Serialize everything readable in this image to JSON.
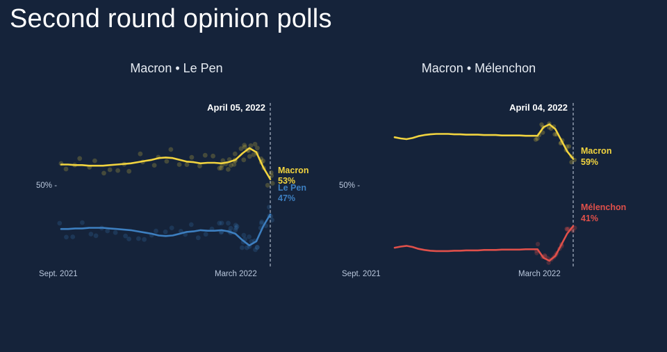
{
  "page": {
    "title": "Second round opinion polls"
  },
  "colors": {
    "background": "#15233a",
    "macron": "#f2d43f",
    "lepen": "#3d7fc0",
    "melenchon": "#e0504a",
    "tick": "#b9c7dc"
  },
  "chart_data": [
    {
      "type": "line",
      "title": "Macron • Le Pen",
      "xlabel": "",
      "ylabel": "",
      "date_marker": "April 05, 2022",
      "x_ticks": [
        "Sept. 2021",
        "March 2022"
      ],
      "y_ticks": [
        {
          "value": 50,
          "label": "50% -"
        }
      ],
      "ylim": [
        38,
        66
      ],
      "x": [
        0,
        1,
        2,
        3,
        4,
        5,
        6,
        7,
        8,
        9,
        10,
        11,
        12,
        13,
        14,
        15,
        16,
        17,
        18,
        19,
        20,
        21,
        22,
        23,
        24,
        25,
        26,
        27,
        28,
        29,
        30
      ],
      "series": [
        {
          "name": "Macron",
          "color": "#f2d43f",
          "end_label": "53%",
          "values": [
            55.5,
            55.5,
            55.4,
            55.4,
            55.3,
            55.3,
            55.3,
            55.4,
            55.5,
            55.6,
            55.7,
            55.9,
            56.1,
            56.3,
            56.6,
            56.7,
            56.6,
            56.3,
            56.0,
            55.9,
            55.7,
            55.8,
            55.8,
            55.7,
            55.9,
            56.3,
            57.4,
            58.3,
            57.6,
            55.0,
            53.0
          ]
        },
        {
          "name": "Le Pen",
          "color": "#3d7fc0",
          "end_label": "47%",
          "values": [
            44.5,
            44.5,
            44.6,
            44.6,
            44.7,
            44.7,
            44.7,
            44.6,
            44.5,
            44.4,
            44.3,
            44.1,
            43.9,
            43.7,
            43.4,
            43.3,
            43.4,
            43.7,
            44.0,
            44.1,
            44.3,
            44.2,
            44.2,
            44.3,
            44.1,
            43.7,
            42.6,
            41.7,
            42.4,
            45.0,
            47.0
          ]
        }
      ]
    },
    {
      "type": "line",
      "title": "Macron • Mélenchon",
      "xlabel": "",
      "ylabel": "",
      "date_marker": "April 04, 2022",
      "x_ticks": [
        "Sept. 2021",
        "March 2022"
      ],
      "y_ticks": [
        {
          "value": 50,
          "label": "50% -"
        }
      ],
      "ylim": [
        30,
        74
      ],
      "x": [
        0,
        1,
        2,
        3,
        4,
        5,
        6,
        7,
        8,
        9,
        10,
        11,
        12,
        13,
        14,
        15,
        16,
        17,
        18,
        19,
        20,
        21,
        22,
        23,
        24,
        25,
        26,
        27,
        28,
        29,
        30
      ],
      "series": [
        {
          "name": "Macron",
          "color": "#f2d43f",
          "end_label": "59%",
          "values": [
            64.8,
            64.5,
            64.3,
            64.6,
            65.1,
            65.4,
            65.6,
            65.7,
            65.7,
            65.7,
            65.6,
            65.6,
            65.5,
            65.5,
            65.5,
            65.4,
            65.4,
            65.4,
            65.3,
            65.3,
            65.3,
            65.3,
            65.2,
            65.2,
            65.2,
            67.5,
            68.3,
            67.0,
            64.0,
            61.0,
            59.0
          ]
        },
        {
          "name": "Mélenchon",
          "color": "#e0504a",
          "end_label": "41%",
          "values": [
            35.2,
            35.5,
            35.7,
            35.4,
            34.9,
            34.6,
            34.4,
            34.3,
            34.3,
            34.3,
            34.4,
            34.4,
            34.5,
            34.5,
            34.5,
            34.6,
            34.6,
            34.6,
            34.7,
            34.7,
            34.7,
            34.7,
            34.8,
            34.8,
            34.8,
            32.5,
            31.7,
            33.0,
            36.0,
            39.0,
            41.0
          ]
        }
      ]
    }
  ]
}
